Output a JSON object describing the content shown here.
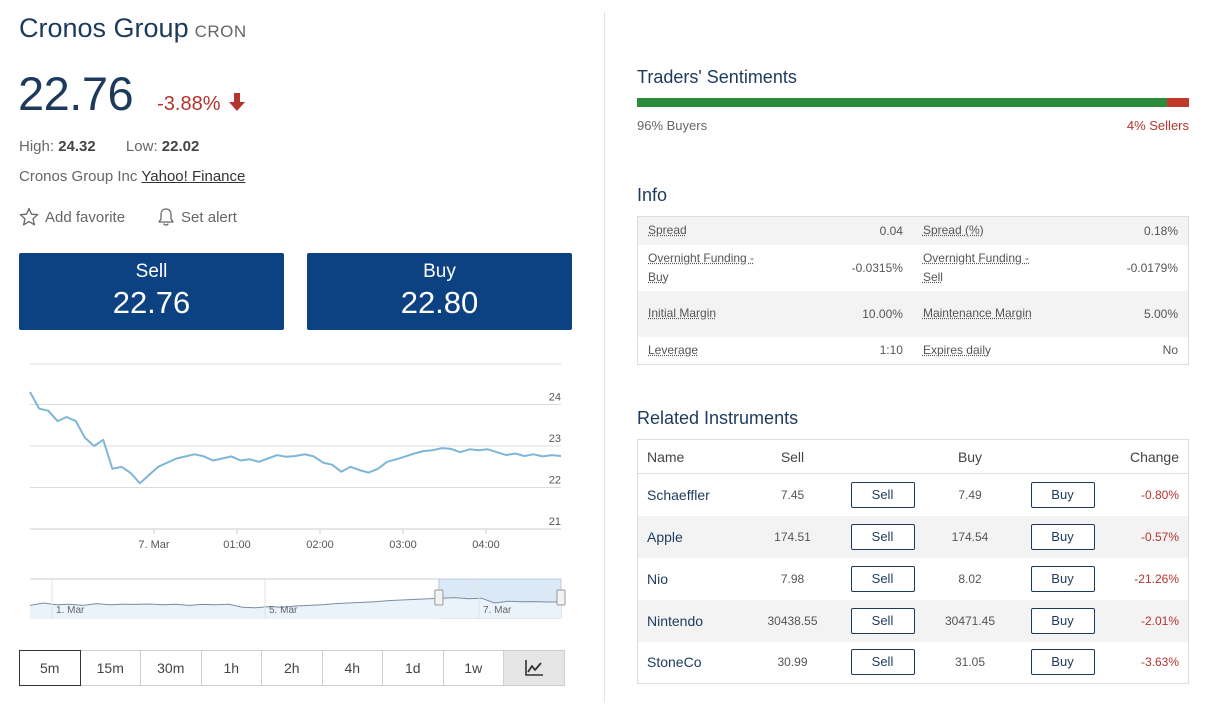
{
  "instrument": {
    "name": "Cronos Group",
    "symbol": "CRON",
    "price": "22.76",
    "change": "-3.88%",
    "high_label": "High:",
    "high": "24.32",
    "low_label": "Low:",
    "low": "22.02",
    "company": "Cronos Group Inc",
    "source_link": "Yahoo! Finance"
  },
  "actions": {
    "favorite": "Add favorite",
    "alert": "Set alert"
  },
  "trade": {
    "sell_label": "Sell",
    "sell_price": "22.76",
    "buy_label": "Buy",
    "buy_price": "22.80"
  },
  "chart_data": {
    "type": "line",
    "x_tick_labels": [
      "7. Mar",
      "01:00",
      "02:00",
      "03:00",
      "04:00"
    ],
    "y_tick_labels": [
      "24",
      "23",
      "22",
      "21"
    ],
    "ylim": [
      21,
      24.6
    ],
    "series": [
      {
        "values": [
          24.3,
          23.9,
          23.85,
          23.6,
          23.7,
          23.6,
          23.2,
          23.0,
          23.15,
          22.45,
          22.5,
          22.35,
          22.1,
          22.3,
          22.5,
          22.6,
          22.7,
          22.75,
          22.8,
          22.75,
          22.65,
          22.7,
          22.75,
          22.65,
          22.68,
          22.62,
          22.7,
          22.78,
          22.74,
          22.76,
          22.8,
          22.75,
          22.6,
          22.55,
          22.38,
          22.5,
          22.42,
          22.36,
          22.45,
          22.62,
          22.68,
          22.75,
          22.82,
          22.88,
          22.9,
          22.95,
          22.93,
          22.85,
          22.92,
          22.9,
          22.92,
          22.85,
          22.78,
          22.82,
          22.76,
          22.8,
          22.75,
          22.78,
          22.76
        ]
      }
    ]
  },
  "navigator": {
    "labels": [
      "1. Mar",
      "5. Mar",
      "7. Mar"
    ],
    "values": [
      0.3,
      0.5,
      0.35,
      0.4,
      0.3,
      0.45,
      0.35,
      0.4,
      0.38,
      0.42,
      0.35,
      0.4,
      0.3,
      0.38,
      0.35,
      0.4,
      0.15,
      0.1,
      0.2,
      0.15,
      0.25,
      0.3,
      0.35,
      0.45,
      0.5,
      0.55,
      0.6,
      0.7,
      0.75,
      0.8,
      0.85,
      0.9,
      0.95,
      0.85,
      0.9,
      0.5,
      0.65,
      0.6,
      0.62,
      0.58,
      0.6
    ],
    "window": [
      0.77,
      1.0
    ]
  },
  "timeframes": [
    "5m",
    "15m",
    "30m",
    "1h",
    "2h",
    "4h",
    "1d",
    "1w"
  ],
  "active_timeframe": "5m",
  "sentiment": {
    "title": "Traders' Sentiments",
    "buyers_pct": 96,
    "buyers_label": "96% Buyers",
    "sellers_label": "4% Sellers",
    "buy_color": "#2b8c3c",
    "sell_color": "#c0392b"
  },
  "info": {
    "title": "Info",
    "rows": [
      [
        {
          "k": "Spread",
          "v": "0.04"
        },
        {
          "k": "Spread (%)",
          "v": "0.18%"
        }
      ],
      [
        {
          "k": "Overnight Funding - Buy",
          "v": "-0.0315%"
        },
        {
          "k": "Overnight Funding - Sell",
          "v": "-0.0179%"
        }
      ],
      [
        {
          "k": "Initial Margin",
          "v": "10.00%"
        },
        {
          "k": "Maintenance Margin",
          "v": "5.00%"
        }
      ],
      [
        {
          "k": "Leverage",
          "v": "1:10"
        },
        {
          "k": "Expires daily",
          "v": "No"
        }
      ]
    ]
  },
  "related": {
    "title": "Related Instruments",
    "headers": {
      "name": "Name",
      "sell": "Sell",
      "buy": "Buy",
      "change": "Change"
    },
    "sell_btn": "Sell",
    "buy_btn": "Buy",
    "rows": [
      {
        "name": "Schaeffler",
        "sell": "7.45",
        "buy": "7.49",
        "change": "-0.80%"
      },
      {
        "name": "Apple",
        "sell": "174.51",
        "buy": "174.54",
        "change": "-0.57%"
      },
      {
        "name": "Nio",
        "sell": "7.98",
        "buy": "8.02",
        "change": "-21.26%"
      },
      {
        "name": "Nintendo",
        "sell": "30438.55",
        "buy": "30471.45",
        "change": "-2.01%"
      },
      {
        "name": "StoneCo",
        "sell": "30.99",
        "buy": "31.05",
        "change": "-3.63%"
      }
    ]
  }
}
